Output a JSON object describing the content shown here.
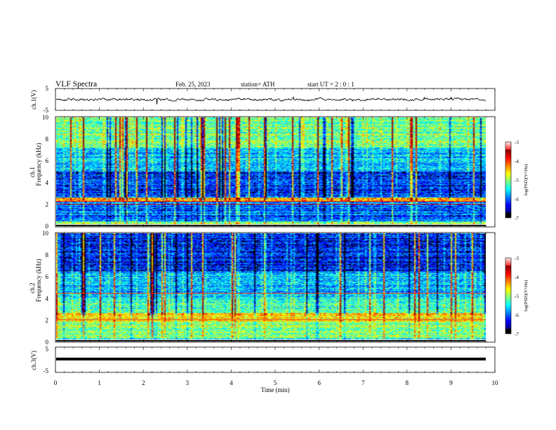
{
  "header": {
    "title": "VLF  Spectra",
    "date": "Feb. 25, 2023",
    "station": "station= ATH",
    "start": "start  UT  =   2  : 0   : 1"
  },
  "chart_data": [
    {
      "type": "line",
      "panel": "ch1-waveform",
      "ylabel": "ch.1(V)",
      "ylim": [
        -5,
        5
      ],
      "yticks": [
        "5",
        "-5"
      ],
      "xlim": [
        0,
        10
      ]
    },
    {
      "type": "heatmap",
      "panel": "ch1-spectrogram",
      "ylabel_1": "ch.1",
      "ylabel_2": "Frequency  (kHz)",
      "ylim": [
        0,
        10
      ],
      "yticks": [
        "10",
        "8",
        "6",
        "4",
        "2",
        "0"
      ],
      "xlim": [
        0,
        10
      ],
      "colorbar": {
        "label": "log(PSD)(V²/Hz)",
        "range": [
          -7,
          -3
        ],
        "ticks": [
          "-3",
          "-4",
          "-5",
          "-6",
          "-7"
        ]
      }
    },
    {
      "type": "heatmap",
      "panel": "ch2-spectrogram",
      "ylabel_1": "ch.2",
      "ylabel_2": "Frequency  (kHz)",
      "ylim": [
        0,
        10
      ],
      "yticks": [
        "10",
        "8",
        "6",
        "4",
        "2",
        "0"
      ],
      "xlim": [
        0,
        10
      ],
      "colorbar": {
        "label": "log(PSD)(V²/Hz)",
        "range": [
          -7,
          -3
        ],
        "ticks": [
          "-3",
          "-4",
          "-5",
          "-6",
          "-7"
        ]
      }
    },
    {
      "type": "line",
      "panel": "ch3-waveform",
      "ylabel": "ch.3(V)",
      "ylim": [
        -5,
        5
      ],
      "yticks": [
        "5",
        "-5"
      ],
      "xlim": [
        0,
        10
      ],
      "xlabel": "Time  (min)",
      "xticks": [
        "0",
        "1",
        "2",
        "3",
        "4",
        "5",
        "6",
        "7",
        "8",
        "9",
        "10"
      ]
    }
  ]
}
